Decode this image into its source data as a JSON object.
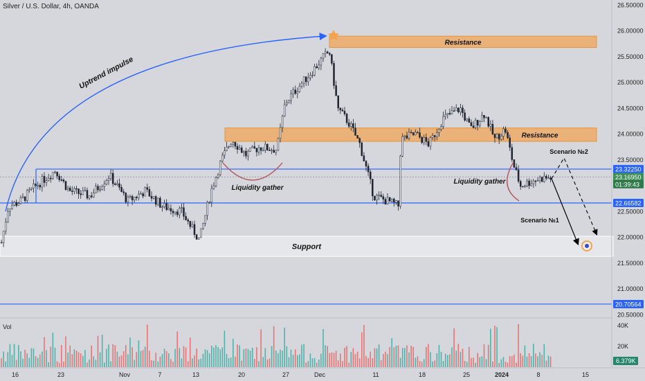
{
  "header": {
    "title": "Silver / U.S. Dollar, 4h, OANDA"
  },
  "colors": {
    "bg": "#d5d7dc",
    "up": "#26a69a",
    "down": "#ef5350",
    "candle": "#1e2430",
    "blue": "#2962ff",
    "orange": "#f2a34f",
    "support_fill": "#e9eaed",
    "label_blue": "#2962ff"
  },
  "chart_data": {
    "type": "candlestick",
    "y_axis": {
      "min": 20.45,
      "max": 26.6,
      "ticks": [
        "26.50000",
        "26.00000",
        "25.50000",
        "25.00000",
        "24.50000",
        "24.00000",
        "23.50000",
        "23.00000",
        "22.50000",
        "22.00000",
        "21.50000",
        "21.00000",
        "20.50000"
      ],
      "tick_values": [
        26.5,
        26.0,
        25.5,
        25.0,
        24.5,
        24.0,
        23.5,
        23.0,
        22.5,
        22.0,
        21.5,
        21.0,
        20.5
      ]
    },
    "x_axis": {
      "labels": [
        "16",
        "23",
        "Nov",
        "7",
        "13",
        "20",
        "27",
        "Dec",
        "11",
        "18",
        "25",
        "2024",
        "8",
        "15"
      ],
      "label_positions": [
        0,
        1,
        2,
        3,
        4,
        5,
        6,
        7,
        8,
        9,
        10,
        11,
        12,
        13
      ]
    },
    "price_labels": [
      {
        "text": "23.32250",
        "value": 23.3225
      },
      {
        "text": "23.16950",
        "value": 23.1695
      },
      {
        "text": "01:39:43",
        "value": 23.03
      },
      {
        "text": "22.66582",
        "value": 22.66582
      },
      {
        "text": "20.70564",
        "value": 20.70564
      }
    ],
    "zones": [
      {
        "name": "resistance-top",
        "label": "Resistance",
        "y1": 25.9,
        "y2": 25.68
      },
      {
        "name": "resistance-mid",
        "label": "Resistance",
        "y1": 24.12,
        "y2": 23.86
      },
      {
        "name": "support",
        "label": "Support",
        "y1": 22.02,
        "y2": 21.63
      }
    ],
    "hlines": [
      23.3225,
      22.66582,
      20.70564
    ],
    "annotations": {
      "uptrend": "Uptrend impulse",
      "liquidity_left": "Liquidity gather",
      "liquidity_right": "Liquidity gather",
      "scenario1": "Scenario №1",
      "scenario2": "Scenario №2"
    },
    "volume": {
      "label": "Vol",
      "ticks": [
        "40K",
        "20K"
      ],
      "tick_values": [
        40000,
        20000
      ],
      "current": "6.379K"
    }
  }
}
